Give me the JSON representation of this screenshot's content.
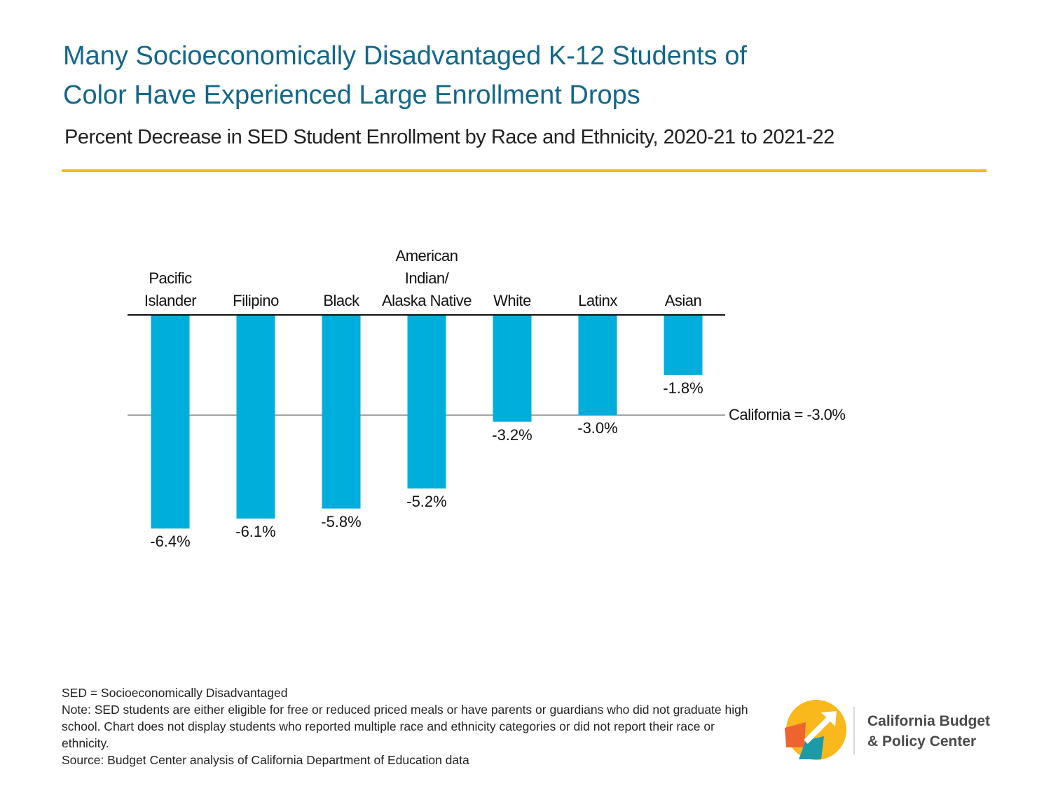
{
  "chart_data": {
    "type": "bar",
    "title": "Many Socioeconomically Disadvantaged K-12 Students of\nColor Have Experienced Large Enrollment Drops",
    "subtitle": "Percent Decrease in SED Student Enrollment by Race and Ethnicity, 2020-21 to 2021-22",
    "categories": [
      "Pacific\nIslander",
      "Filipino",
      "Black",
      "American Indian/\nAlaska Native",
      "White",
      "Latinx",
      "Asian"
    ],
    "values": [
      -6.4,
      -6.1,
      -5.8,
      -5.2,
      -3.2,
      -3.0,
      -1.8
    ],
    "value_labels": [
      "-6.4%",
      "-6.1%",
      "-5.8%",
      "-5.2%",
      "-3.2%",
      "-3.0%",
      "-1.8%"
    ],
    "color": "#00aedb",
    "reference_line": {
      "value": -3.0,
      "label": "California = -3.0%"
    },
    "notes": [
      "SED = Socioeconomically Disadvantaged",
      "Note: SED students are either eligible for free or reduced priced meals or have parents or guardians who did not graduate high school. Chart does not display students who reported multiple race and ethnicity categories or did not report their race or ethnicity.",
      "Source: Budget Center analysis of California Department of Education data"
    ]
  },
  "branding": {
    "name": "California Budget\n& Policy Center"
  }
}
